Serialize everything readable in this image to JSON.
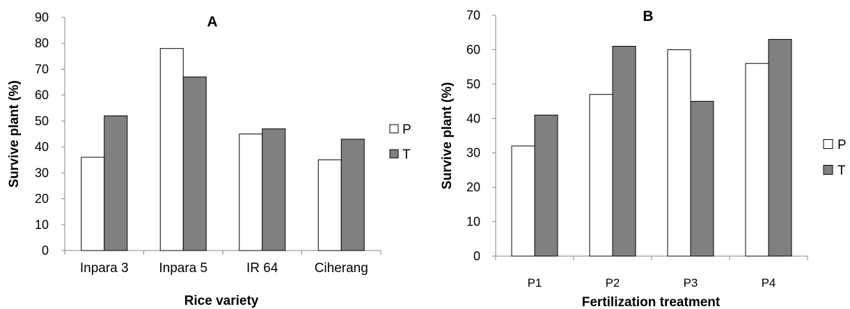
{
  "chart_data": [
    {
      "type": "bar",
      "title": "A",
      "xlabel": "Rice variety",
      "ylabel": "Survive plant (%)",
      "ylim": [
        0,
        90
      ],
      "yticks": [
        0,
        10,
        20,
        30,
        40,
        50,
        60,
        70,
        80,
        90
      ],
      "categories": [
        "Inpara 3",
        "Inpara 5",
        "IR 64",
        "Ciherang"
      ],
      "series": [
        {
          "name": "P",
          "values": [
            36,
            78,
            45,
            35
          ],
          "color": "#ffffff"
        },
        {
          "name": "T",
          "values": [
            52,
            67,
            47,
            43
          ],
          "color": "#808080"
        }
      ],
      "legend_position": "right",
      "grid": false
    },
    {
      "type": "bar",
      "title": "B",
      "xlabel": "Fertilization treatment",
      "ylabel": "Survive plant (%)",
      "ylim": [
        0,
        70
      ],
      "yticks": [
        0,
        10,
        20,
        30,
        40,
        50,
        60,
        70
      ],
      "categories": [
        "P1",
        "P2",
        "P3",
        "P4"
      ],
      "series": [
        {
          "name": "P",
          "values": [
            32,
            47,
            60,
            56
          ],
          "color": "#ffffff"
        },
        {
          "name": "T",
          "values": [
            41,
            61,
            45,
            63
          ],
          "color": "#808080"
        }
      ],
      "legend_position": "right",
      "grid": false
    }
  ]
}
